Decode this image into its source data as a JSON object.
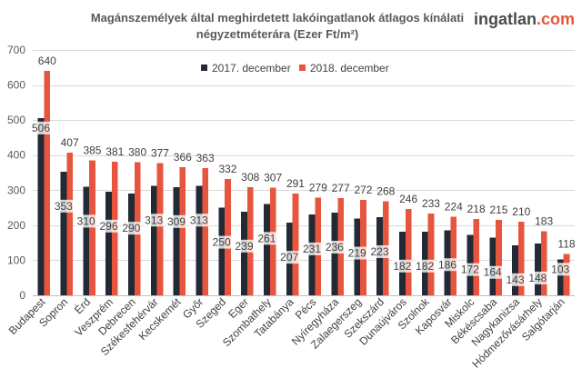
{
  "brand": {
    "logo_main": "ingatlan",
    "logo_accent": ".com",
    "logo_main_color": "#4a4a4a",
    "logo_accent_color": "#e8553e"
  },
  "chart_data": {
    "type": "bar",
    "title_lines": [
      "Magánszemélyek által meghirdetett lakóingatlanok átlagos kínálati",
      "négyzetméterára (Ezer Ft/m²)"
    ],
    "categories": [
      "Budapest",
      "Sopron",
      "Érd",
      "Veszprém",
      "Debrecen",
      "Székesfehérvár",
      "Kecskemét",
      "Győr",
      "Szeged",
      "Eger",
      "Szombathely",
      "Tatabánya",
      "Pécs",
      "Nyíregyháza",
      "Zalaegerszeg",
      "Szekszárd",
      "Dunaújváros",
      "Szolnok",
      "Kaposvár",
      "Miskolc",
      "Békéscsaba",
      "Nagykanizsa",
      "Hódmezővásárhely",
      "Salgótarján"
    ],
    "series": [
      {
        "name": "2017. december",
        "color": "#222a35",
        "values": [
          506,
          353,
          310,
          296,
          290,
          313,
          309,
          313,
          250,
          239,
          261,
          207,
          231,
          236,
          219,
          223,
          182,
          182,
          186,
          172,
          164,
          143,
          148,
          103
        ]
      },
      {
        "name": "2018. december",
        "color": "#e8553e",
        "values": [
          640,
          407,
          385,
          381,
          380,
          377,
          366,
          363,
          332,
          308,
          307,
          291,
          279,
          277,
          272,
          268,
          246,
          233,
          224,
          218,
          215,
          210,
          183,
          118
        ]
      }
    ],
    "ylim": [
      0,
      700
    ],
    "yticks": [
      0,
      100,
      200,
      300,
      400,
      500,
      600,
      700
    ],
    "grid": true,
    "legend_position": "top-center",
    "data_labels": true
  }
}
